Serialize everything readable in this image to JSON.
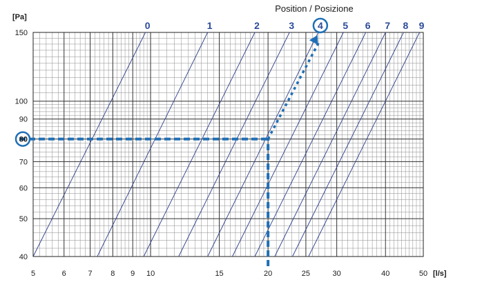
{
  "chart_data": {
    "type": "line",
    "title": "Position / Posizione",
    "xlabel": "[l/s]",
    "ylabel": "[Pa]",
    "x_scale": "log",
    "y_scale": "log",
    "xlim": [
      5,
      50
    ],
    "ylim": [
      40,
      150
    ],
    "x_ticks": [
      5,
      6,
      7,
      8,
      9,
      10,
      15,
      20,
      25,
      30,
      40,
      50
    ],
    "y_ticks": [
      40,
      50,
      60,
      70,
      80,
      90,
      100,
      150
    ],
    "grid": true,
    "series": [
      {
        "name": "0",
        "x": [
          5.0,
          9.7
        ],
        "y": [
          40,
          150
        ]
      },
      {
        "name": "1",
        "x": [
          7.3,
          14.0
        ],
        "y": [
          40,
          150
        ]
      },
      {
        "name": "2",
        "x": [
          9.6,
          18.5
        ],
        "y": [
          40,
          150
        ]
      },
      {
        "name": "3",
        "x": [
          11.8,
          22.7
        ],
        "y": [
          40,
          150
        ]
      },
      {
        "name": "4",
        "x": [
          14.0,
          26.9
        ],
        "y": [
          40,
          150
        ]
      },
      {
        "name": "5",
        "x": [
          16.2,
          31.2
        ],
        "y": [
          40,
          150
        ]
      },
      {
        "name": "6",
        "x": [
          18.5,
          35.6
        ],
        "y": [
          40,
          150
        ]
      },
      {
        "name": "7",
        "x": [
          20.8,
          40.0
        ],
        "y": [
          40,
          150
        ]
      },
      {
        "name": "8",
        "x": [
          23.1,
          44.5
        ],
        "y": [
          40,
          150
        ]
      },
      {
        "name": "9",
        "x": [
          25.4,
          48.9
        ],
        "y": [
          40,
          150
        ]
      }
    ],
    "annotations": {
      "reference_path": [
        {
          "x": 5,
          "y": 80
        },
        {
          "x": 20,
          "y": 80
        },
        {
          "x": 27,
          "y": 150
        }
      ],
      "vertical_guide": [
        {
          "x": 20,
          "y": 40
        },
        {
          "x": 20,
          "y": 80
        }
      ],
      "highlighted_y": "80",
      "highlighted_position": "4"
    },
    "colors": {
      "curve": "#2c3e8c",
      "grid_major": "#333333",
      "grid_minor": "#8a8a8a",
      "annotation": "#1f6fb5",
      "label": "#2c4a9a"
    }
  }
}
